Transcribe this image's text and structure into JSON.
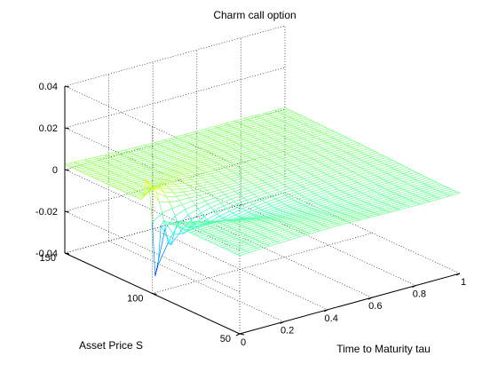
{
  "chart_data": {
    "type": "surface",
    "title": "Charm call option",
    "xlabel": "Time to Maturity tau",
    "ylabel": "Asset Price S",
    "zlabel": "",
    "xlim": [
      0,
      1
    ],
    "ylim": [
      50,
      150
    ],
    "zlim": [
      -0.04,
      0.04
    ],
    "x_ticks": [
      0,
      0.2,
      0.4,
      0.6,
      0.8,
      1
    ],
    "x_tick_labels": [
      "0",
      "0.2",
      "0.4",
      "0.6",
      "0.8",
      "1"
    ],
    "y_ticks": [
      50,
      100,
      150
    ],
    "y_tick_labels": [
      "50",
      "100",
      "150"
    ],
    "z_ticks": [
      -0.04,
      -0.02,
      0,
      0.02,
      0.04
    ],
    "z_tick_labels": [
      "-0.04",
      "-0.02",
      "0",
      "0.02",
      "0.04"
    ],
    "grid": true,
    "colormap": "jet",
    "strike": 100,
    "peak_max": 0.013,
    "peak_min": -0.033
  }
}
